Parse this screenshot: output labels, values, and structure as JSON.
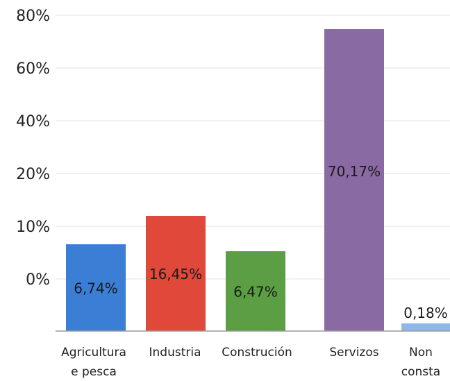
{
  "chart_data": {
    "type": "bar",
    "title": "",
    "xlabel": "",
    "ylabel": "",
    "categories": [
      [
        "Agricultura",
        "e pesca"
      ],
      [
        "Industria"
      ],
      [
        "Construción"
      ],
      [
        "Servizos"
      ],
      [
        "Non",
        "consta"
      ]
    ],
    "values": [
      6.74,
      16.45,
      6.47,
      70.17,
      0.18
    ],
    "value_labels": [
      "6,74%",
      "16,45%",
      "6,47%",
      "70,17%",
      "0,18%"
    ],
    "y_tick_labels": [
      "0%",
      "10%",
      "20%",
      "40%",
      "60%",
      "80%"
    ],
    "bar_colors": [
      "#3a7fd5",
      "#e0483a",
      "#5b9e43",
      "#8a6aa3",
      "#8fb8e8"
    ],
    "grid": true,
    "legend": "none"
  }
}
